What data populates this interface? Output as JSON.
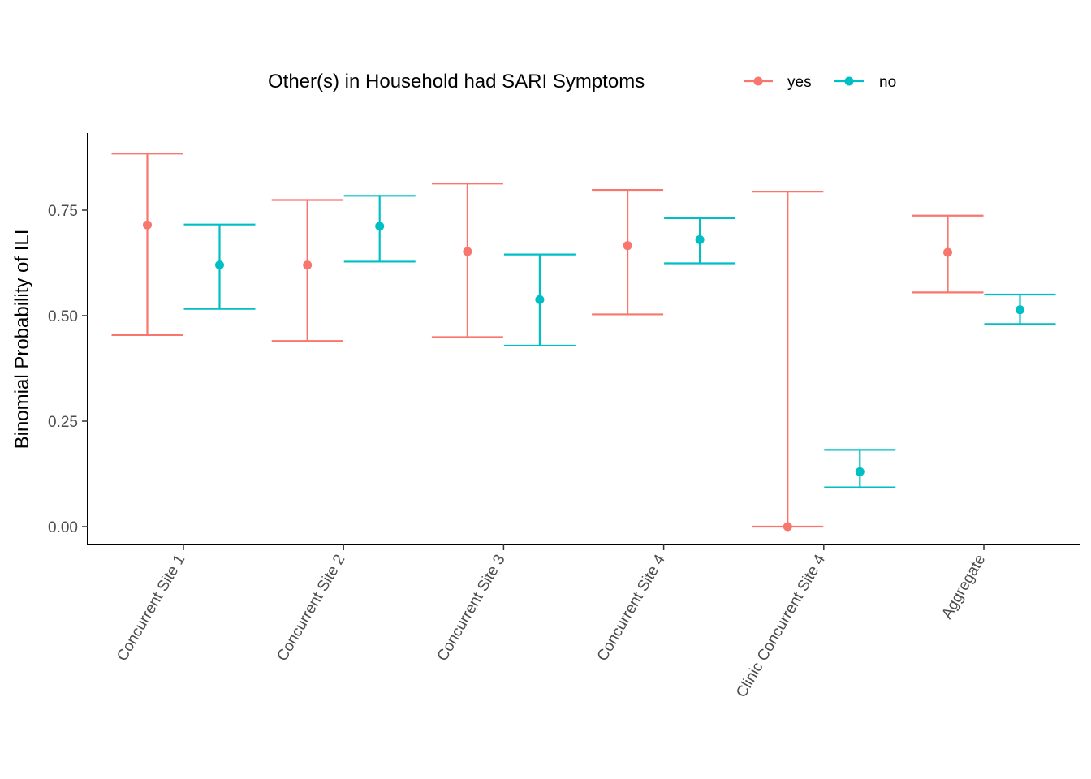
{
  "chart_data": {
    "type": "errorbar",
    "title": "",
    "xlabel": "",
    "ylabel": "Binomial Probability of ILI",
    "ylim": [
      -0.04,
      0.93
    ],
    "yticks": [
      0.0,
      0.25,
      0.5,
      0.75
    ],
    "ytick_labels": [
      "0.00",
      "0.25",
      "0.50",
      "0.75"
    ],
    "grid": false,
    "legend": {
      "title": "Other(s) in Household had SARI Symptoms",
      "placement": "top",
      "items": [
        {
          "label": "yes",
          "color": "#F8766D"
        },
        {
          "label": "no",
          "color": "#00BFC4"
        }
      ]
    },
    "categories": [
      "Concurrent Site 1",
      "Concurrent Site 2",
      "Concurrent Site 3",
      "Concurrent Site 4",
      "Clinic Concurrent Site 4",
      "Aggregate"
    ],
    "series": [
      {
        "name": "yes",
        "color": "#F8766D",
        "values": [
          0.715,
          0.62,
          0.652,
          0.666,
          0.0,
          0.65
        ],
        "lower": [
          0.454,
          0.44,
          0.449,
          0.503,
          0.0,
          0.555
        ],
        "upper": [
          0.884,
          0.774,
          0.813,
          0.798,
          0.794,
          0.737
        ]
      },
      {
        "name": "no",
        "color": "#00BFC4",
        "values": [
          0.62,
          0.712,
          0.538,
          0.68,
          0.13,
          0.514
        ],
        "lower": [
          0.516,
          0.628,
          0.429,
          0.624,
          0.093,
          0.48
        ],
        "upper": [
          0.716,
          0.784,
          0.645,
          0.731,
          0.182,
          0.55
        ]
      }
    ]
  }
}
